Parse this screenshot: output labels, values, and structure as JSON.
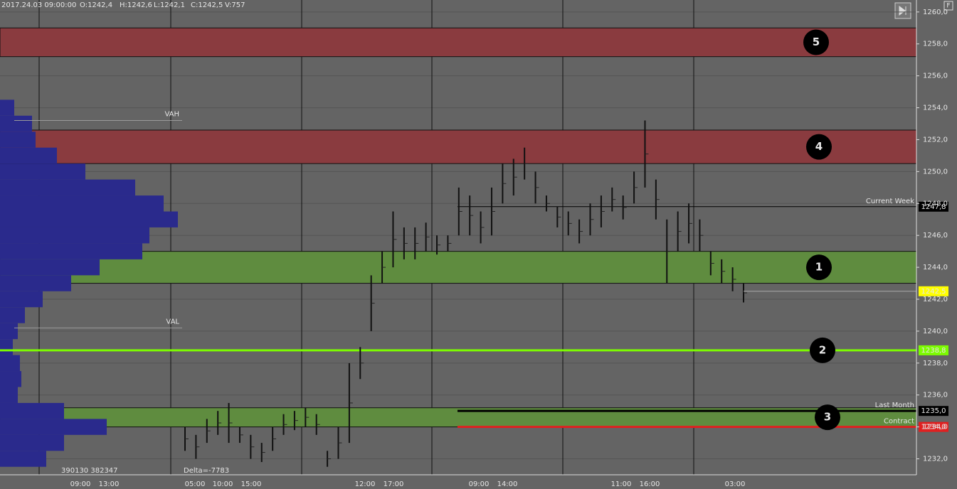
{
  "header": {
    "time": "2017.24.03 09:00:00",
    "open": "O:1242,4",
    "high": "H:1242,6",
    "low": "L:1242,1",
    "close": "C:1242,5",
    "volume": "V:757"
  },
  "chart_data": {
    "type": "market-profile",
    "ylim": [
      1231.0,
      1260.75
    ],
    "yticks": [
      {
        "value": 1232,
        "label": "1232,0"
      },
      {
        "value": 1234,
        "label": "1234,0"
      },
      {
        "value": 1236,
        "label": "1236,0"
      },
      {
        "value": 1238,
        "label": "1238,0"
      },
      {
        "value": 1240,
        "label": "1240,0"
      },
      {
        "value": 1242,
        "label": "1242,0"
      },
      {
        "value": 1244,
        "label": "1244,0"
      },
      {
        "value": 1246,
        "label": "1246,0"
      },
      {
        "value": 1248,
        "label": "1248,0"
      },
      {
        "value": 1250,
        "label": "1250,0"
      },
      {
        "value": 1252,
        "label": "1252,0"
      },
      {
        "value": 1254,
        "label": "1254,0"
      },
      {
        "value": 1256,
        "label": "1256,0"
      },
      {
        "value": 1258,
        "label": "1258,0"
      },
      {
        "value": 1260,
        "label": "1260,0"
      }
    ],
    "grid": true,
    "zones": [
      {
        "label": "5",
        "low": 1257.2,
        "high": 1259.0,
        "color": "#8a3b3f"
      },
      {
        "label": "4",
        "low": 1250.5,
        "high": 1252.6,
        "color": "#8a3b3f"
      },
      {
        "label": "1",
        "low": 1243.0,
        "high": 1245.0,
        "color": "#5f8c3f"
      },
      {
        "label": "3",
        "low": 1234.0,
        "high": 1235.2,
        "color": "#5f8c3f"
      }
    ],
    "levels": [
      {
        "name": "Current Week",
        "value": 1247.8,
        "value_label": "1247,8",
        "color": "#000000",
        "tag_color": "#000000",
        "tag_text": "#ffffff"
      },
      {
        "name": "Last Month",
        "value": 1235.0,
        "value_label": "1235,0",
        "color": "#000000",
        "tag_color": "#000000",
        "tag_text": "#ffffff"
      },
      {
        "name": "Contract",
        "value": 1234.0,
        "value_label": "1234,0",
        "color": "#e02020",
        "tag_color": "#e02020",
        "tag_text": "#ffffff"
      }
    ],
    "key_level": {
      "label": "2",
      "value": 1238.8,
      "value_label": "1238,8",
      "color": "#7cfc00"
    },
    "last_price": {
      "value": 1242.5,
      "value_label": "1242,5",
      "color": "#ffff00"
    },
    "value_area": [
      {
        "name": "VAH",
        "value": 1253.2
      },
      {
        "name": "VAL",
        "value": 1240.2
      }
    ],
    "x_labels": [
      "09:00",
      "13:00",
      "05:00",
      "10:00",
      "15:00",
      "12:00",
      "17:00",
      "09:00",
      "14:00",
      "11:00",
      "16:00",
      "03:00"
    ],
    "profile_prices": [
      1254,
      1253,
      1252,
      1251,
      1250,
      1249,
      1248,
      1247,
      1246,
      1245,
      1244,
      1243,
      1242,
      1241,
      1240,
      1239,
      1238,
      1237,
      1236,
      1235,
      1234,
      1233,
      1232
    ],
    "profile_volumes": [
      20,
      45,
      50,
      80,
      120,
      190,
      230,
      250,
      210,
      200,
      140,
      100,
      60,
      35,
      25,
      18,
      28,
      30,
      25,
      90,
      150,
      90,
      65
    ],
    "bars": [
      [
        1232.5,
        1234
      ],
      [
        1232,
        1233.5
      ],
      [
        1233,
        1234.5
      ],
      [
        1233.5,
        1235
      ],
      [
        1233,
        1235.5
      ],
      [
        1233,
        1234
      ],
      [
        1232,
        1233.5
      ],
      [
        1231.8,
        1233
      ],
      [
        1232.5,
        1234
      ],
      [
        1233.5,
        1234.8
      ],
      [
        1233.8,
        1235
      ],
      [
        1234,
        1235.2
      ],
      [
        1233.5,
        1234.8
      ],
      [
        1231.5,
        1232.5
      ],
      [
        1232,
        1234
      ],
      [
        1233,
        1238
      ],
      [
        1237,
        1239
      ],
      [
        1240,
        1243.5
      ],
      [
        1243,
        1245
      ],
      [
        1244,
        1247.5
      ],
      [
        1244.5,
        1246.5
      ],
      [
        1244.5,
        1246.5
      ],
      [
        1245,
        1246.8
      ],
      [
        1244.8,
        1246
      ],
      [
        1245,
        1246
      ],
      [
        1246,
        1249
      ],
      [
        1246,
        1248.5
      ],
      [
        1245.5,
        1247.5
      ],
      [
        1246,
        1249
      ],
      [
        1248,
        1250.5
      ],
      [
        1248.5,
        1250.8
      ],
      [
        1249.5,
        1251.5
      ],
      [
        1248,
        1250
      ],
      [
        1247.5,
        1248.5
      ],
      [
        1246.5,
        1247.8
      ],
      [
        1246,
        1247.5
      ],
      [
        1245.5,
        1247
      ],
      [
        1246,
        1248
      ],
      [
        1246.5,
        1248.5
      ],
      [
        1247.5,
        1249
      ],
      [
        1247,
        1248.5
      ],
      [
        1248,
        1250
      ],
      [
        1249,
        1253.2
      ],
      [
        1247,
        1249.5
      ],
      [
        1243,
        1247
      ],
      [
        1245,
        1247.5
      ],
      [
        1245.5,
        1248
      ],
      [
        1245,
        1247
      ],
      [
        1243.5,
        1245
      ],
      [
        1243,
        1244.5
      ],
      [
        1242.5,
        1244
      ],
      [
        1241.8,
        1243
      ]
    ],
    "footer": {
      "volumes": "390130 382347",
      "delta": "Delta=-7783"
    }
  }
}
